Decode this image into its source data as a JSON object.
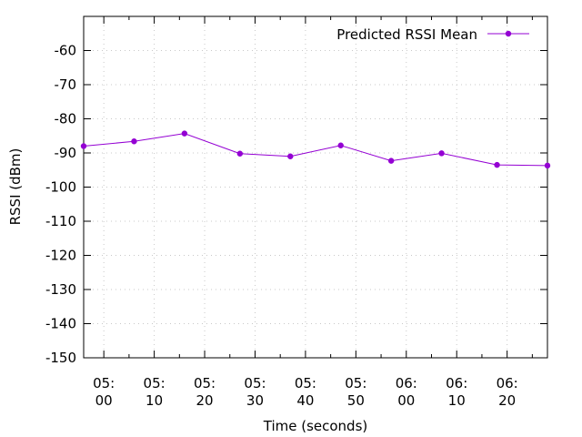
{
  "chart_data": {
    "type": "line",
    "xlabel": "Time (seconds)",
    "ylabel": "RSSI (dBm)",
    "ylim": [
      -150,
      -50
    ],
    "yticks": [
      -60,
      -70,
      -80,
      -90,
      -100,
      -110,
      -120,
      -130,
      -140,
      -150
    ],
    "xlim": [
      "04:56",
      "06:28"
    ],
    "xticks": [
      {
        "t": "05:00",
        "line1": "05:",
        "line2": "00"
      },
      {
        "t": "05:10",
        "line1": "05:",
        "line2": "10"
      },
      {
        "t": "05:20",
        "line1": "05:",
        "line2": "20"
      },
      {
        "t": "05:30",
        "line1": "05:",
        "line2": "30"
      },
      {
        "t": "05:40",
        "line1": "05:",
        "line2": "40"
      },
      {
        "t": "05:50",
        "line1": "05:",
        "line2": "50"
      },
      {
        "t": "06:00",
        "line1": "06:",
        "line2": "00"
      },
      {
        "t": "06:10",
        "line1": "06:",
        "line2": "10"
      },
      {
        "t": "06:20",
        "line1": "06:",
        "line2": "20"
      }
    ],
    "legend_position": "top-right",
    "grid": true,
    "series": [
      {
        "name": "Predicted RSSI Mean",
        "color": "#9400d3",
        "points": [
          {
            "t": "04:56",
            "y": -88.0
          },
          {
            "t": "05:06",
            "y": -86.6
          },
          {
            "t": "05:16",
            "y": -84.3
          },
          {
            "t": "05:27",
            "y": -90.2
          },
          {
            "t": "05:37",
            "y": -91.0
          },
          {
            "t": "05:47",
            "y": -87.8
          },
          {
            "t": "05:57",
            "y": -92.3
          },
          {
            "t": "06:07",
            "y": -90.1
          },
          {
            "t": "06:18",
            "y": -93.5
          },
          {
            "t": "06:28",
            "y": -93.7
          }
        ]
      }
    ]
  }
}
